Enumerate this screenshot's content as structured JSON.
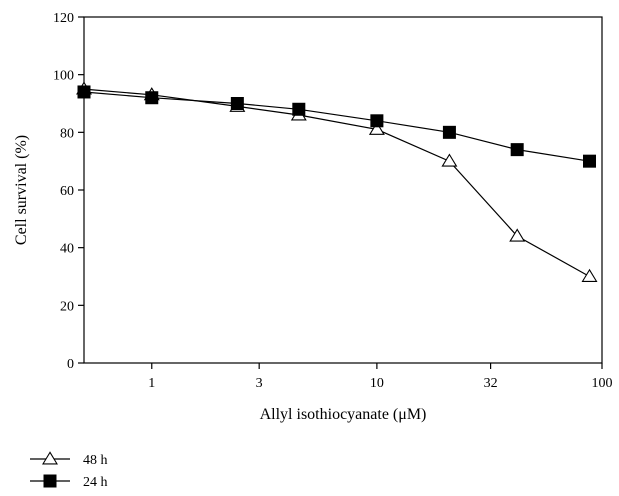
{
  "chart_data": {
    "type": "line",
    "xscale": "log",
    "xlim": [
      0.5,
      100
    ],
    "ylim": [
      0,
      120
    ],
    "xticks": [
      {
        "value": 1,
        "label": "1"
      },
      {
        "value": 3,
        "label": "3"
      },
      {
        "value": 10,
        "label": "10"
      },
      {
        "value": 32,
        "label": "32"
      },
      {
        "value": 100,
        "label": "100"
      }
    ],
    "yticks": [
      {
        "value": 0,
        "label": "0"
      },
      {
        "value": 20,
        "label": "20"
      },
      {
        "value": 40,
        "label": "40"
      },
      {
        "value": 60,
        "label": "60"
      },
      {
        "value": 80,
        "label": "80"
      },
      {
        "value": 100,
        "label": "100"
      },
      {
        "value": 120,
        "label": "120"
      }
    ],
    "xlabel": "Allyl isothiocyanate (μM)",
    "ylabel": "Cell survival (%)",
    "grid": false,
    "legend_position": "bottom-left",
    "series": [
      {
        "name": "48 h",
        "marker": "open-triangle",
        "color": "#000000",
        "points": [
          {
            "x": 0.5,
            "y": 95
          },
          {
            "x": 1,
            "y": 93
          },
          {
            "x": 2.4,
            "y": 89
          },
          {
            "x": 4.5,
            "y": 86
          },
          {
            "x": 10,
            "y": 81
          },
          {
            "x": 21,
            "y": 70
          },
          {
            "x": 42,
            "y": 44
          },
          {
            "x": 88,
            "y": 30
          }
        ]
      },
      {
        "name": "24 h",
        "marker": "filled-square",
        "color": "#000000",
        "points": [
          {
            "x": 0.5,
            "y": 94
          },
          {
            "x": 1,
            "y": 92
          },
          {
            "x": 2.4,
            "y": 90
          },
          {
            "x": 4.5,
            "y": 88
          },
          {
            "x": 10,
            "y": 84
          },
          {
            "x": 21,
            "y": 80
          },
          {
            "x": 42,
            "y": 74
          },
          {
            "x": 88,
            "y": 70
          }
        ]
      }
    ]
  }
}
